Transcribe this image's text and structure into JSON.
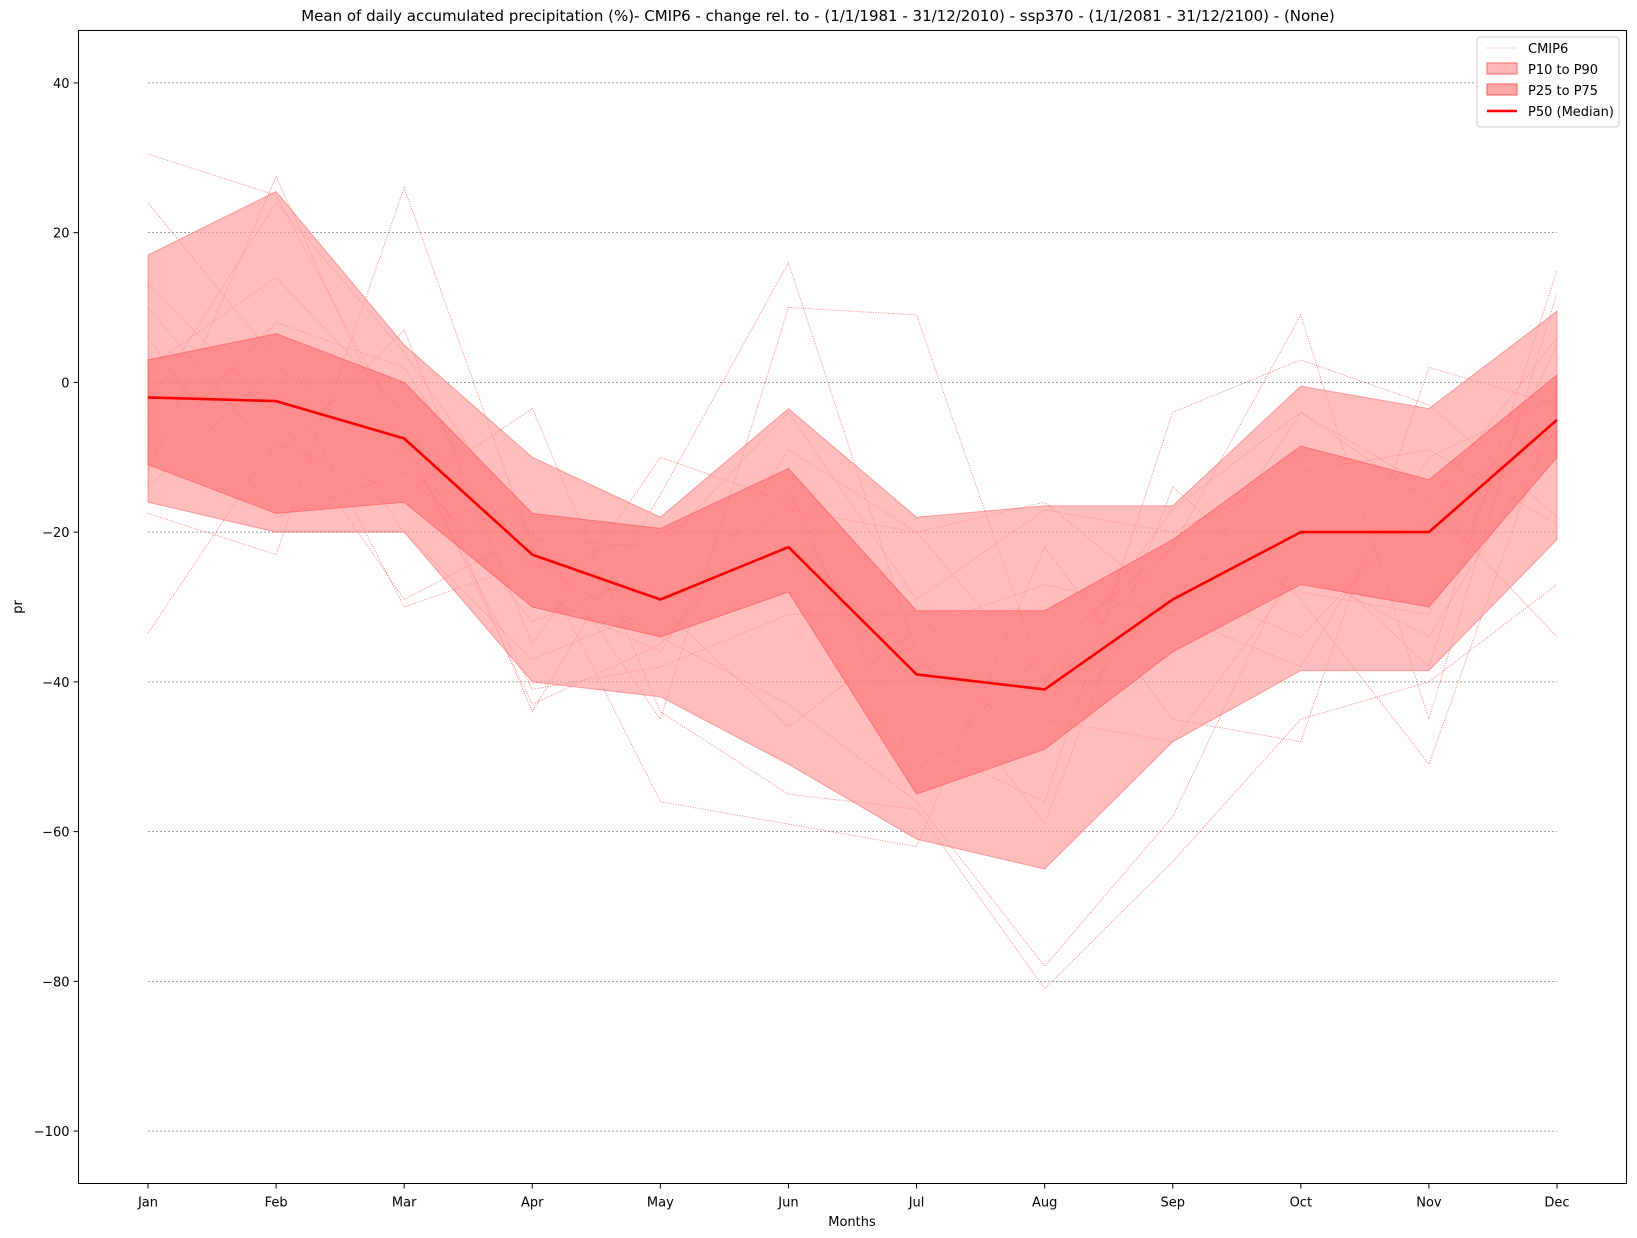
{
  "chart_data": {
    "type": "line",
    "title": "Mean of daily accumulated precipitation (%)- CMIP6 - change rel. to - (1/1/1981 - 31/12/2010)  - ssp370  - (1/1/2081 - 31/12/2100) - (None)",
    "xlabel": "Months",
    "ylabel": "pr",
    "categories": [
      "Jan",
      "Feb",
      "Mar",
      "Apr",
      "May",
      "Jun",
      "Jul",
      "Aug",
      "Sep",
      "Oct",
      "Nov",
      "Dec"
    ],
    "yticks": [
      40,
      20,
      0,
      -20,
      -40,
      -60,
      -80,
      -100
    ],
    "ytick_labels": [
      "40",
      "20",
      "0",
      "−20",
      "−40",
      "−60",
      "−80",
      "−100"
    ],
    "ylim": [
      -107,
      47
    ],
    "grid": "horizontal dashed",
    "legend_position": "top-right",
    "legend": {
      "cmip6": "CMIP6",
      "p10_p90": "P10 to P90",
      "p25_p75": "P25 to P75",
      "p50": "P50 (Median)"
    },
    "colors": {
      "line": "#ff0000",
      "band_outer": "#ff9a9a",
      "band_inner": "#ff6666",
      "grid": "#808080"
    },
    "p50": [
      -2,
      -2.5,
      -7.5,
      -23,
      -29,
      -22,
      -39,
      -41,
      -29,
      -20,
      -20,
      -5
    ],
    "p25": [
      -11,
      -17.5,
      -16,
      -30,
      -34,
      -28,
      -55,
      -49,
      -36,
      -27,
      -30,
      -10
    ],
    "p75": [
      3,
      6.5,
      0,
      -17.5,
      -19.5,
      -11.5,
      -30.5,
      -30.5,
      -21,
      -8.5,
      -13,
      1
    ],
    "p10": [
      -16,
      -20,
      -20,
      -40,
      -42,
      -51,
      -61,
      -65,
      -48,
      -38.5,
      -38.5,
      -21
    ],
    "p90": [
      17,
      25.5,
      5,
      -10,
      -18,
      -3.5,
      -18,
      -16.5,
      -16.5,
      -0.5,
      -3.5,
      9.5
    ],
    "series": [
      {
        "values": [
          30.5,
          25,
          -7,
          -43,
          -35,
          -15,
          -37,
          -48,
          -27,
          -34,
          -16,
          6
        ]
      },
      {
        "values": [
          24,
          3,
          -30,
          -24,
          -34,
          -43,
          -56,
          -78,
          -58,
          -22,
          -38,
          15
        ]
      },
      {
        "values": [
          -33.5,
          -8,
          -15,
          -3.5,
          -44,
          -55,
          -57,
          -81,
          -64,
          -45,
          -40,
          -27
        ]
      },
      {
        "values": [
          -17.5,
          -23,
          26,
          -22,
          -56,
          -59,
          -62,
          -22,
          -45,
          -48,
          2,
          -3
        ]
      },
      {
        "values": [
          -12,
          27.5,
          -10,
          -32,
          -25,
          -17,
          -20,
          -16,
          -30,
          -4,
          -16,
          -34
        ]
      },
      {
        "values": [
          10,
          -10,
          7,
          -35,
          -10,
          -16,
          -48,
          -56,
          -4,
          3,
          -3,
          -18
        ]
      },
      {
        "values": [
          2,
          14,
          -4,
          -44,
          -15,
          16,
          -36,
          -59,
          -14,
          -29,
          -51,
          -3
        ]
      },
      {
        "values": [
          13,
          -4,
          -29,
          -20,
          -45,
          10,
          9,
          -40,
          -22,
          9,
          -45,
          12
        ]
      },
      {
        "values": [
          -5,
          5,
          -20,
          -37,
          -30,
          -46,
          -33,
          -27,
          -31,
          -38,
          -10,
          -2
        ]
      },
      {
        "values": [
          -10,
          8,
          2,
          -25,
          -20,
          -14,
          -52,
          -36,
          -22,
          -28,
          -31,
          5
        ]
      },
      {
        "values": [
          6,
          -18,
          -12,
          -28,
          -36,
          -9,
          -20,
          -40,
          -17,
          -4,
          -14,
          -9
        ]
      },
      {
        "values": [
          -14,
          2,
          -8,
          -41,
          -38,
          -31,
          -31,
          -45,
          -48,
          -25,
          -34,
          -6
        ]
      },
      {
        "values": [
          -3,
          24,
          4,
          -21,
          -22,
          -4,
          -29,
          -17,
          -20,
          -12,
          -9,
          -19
        ]
      }
    ]
  }
}
